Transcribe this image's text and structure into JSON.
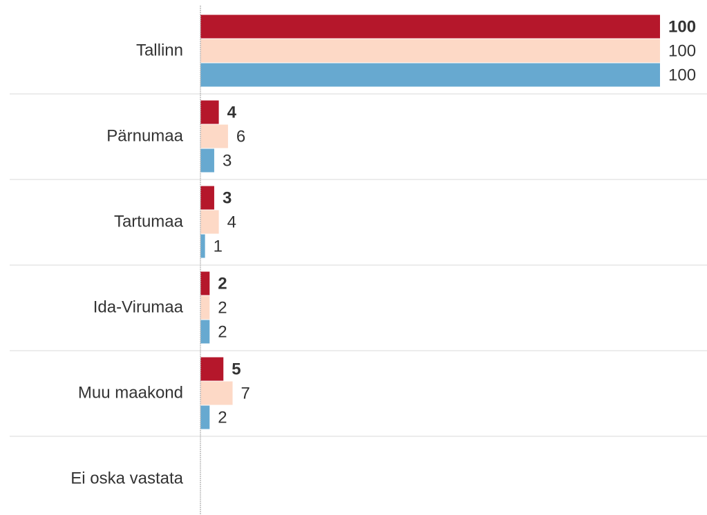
{
  "chart_data": {
    "type": "bar",
    "orientation": "horizontal",
    "categories": [
      "Tallinn",
      "Pärnumaa",
      "Tartumaa",
      "Ida-Virumaa",
      "Muu maakond",
      "Ei oska vastata"
    ],
    "series": [
      {
        "color": "#b5172b",
        "values": [
          100,
          4,
          3,
          2,
          5,
          null
        ],
        "bold_labels": true
      },
      {
        "color": "#fdd9c6",
        "values": [
          100,
          6,
          4,
          2,
          7,
          null
        ]
      },
      {
        "color": "#67a9d0",
        "values": [
          100,
          3,
          1,
          2,
          2,
          null
        ]
      }
    ],
    "xlim": [
      0,
      100
    ]
  }
}
